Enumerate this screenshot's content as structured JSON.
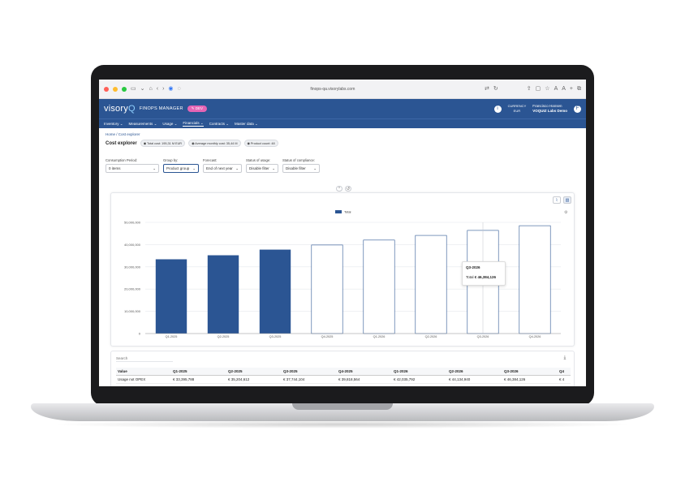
{
  "browser": {
    "url": "finops-qa.visorylabs.com"
  },
  "app": {
    "logo_main": "visory",
    "logo_accent": "Q",
    "name": "FINOPS MANAGER",
    "env_badge": "DEV",
    "currency_label": "CURRENCY",
    "currency_value": "EUR",
    "user_name": "Francisco Hansen",
    "user_org": "VOQUIZ Labs Demo",
    "avatar_initial": "F",
    "help_icon": "info-icon"
  },
  "nav": [
    {
      "label": "Inventory"
    },
    {
      "label": "Measurements"
    },
    {
      "label": "Usage"
    },
    {
      "label": "Financials"
    },
    {
      "label": "Contracts"
    },
    {
      "label": "Master data"
    }
  ],
  "breadcrumb": "Home / Cost explorer",
  "page": {
    "title": "Cost explorer",
    "badges": [
      "Total cost: 195,31 M EUR",
      "Average monthly cost: 35,44 M",
      "Product count: 48"
    ]
  },
  "filters": [
    {
      "label": "Consumption Period:",
      "value": "0 items"
    },
    {
      "label": "Group by:",
      "value": "Product group"
    },
    {
      "label": "Forecast:",
      "value": "End of next year"
    },
    {
      "label": "Status of usage:",
      "value": "Disable filter"
    },
    {
      "label": "Status of compliance:",
      "value": "Disable filter"
    }
  ],
  "chart_data": {
    "type": "bar",
    "categories": [
      "Q1-2025",
      "Q2-2025",
      "Q3-2025",
      "Q4-2025",
      "Q1-2026",
      "Q2-2026",
      "Q3-2026",
      "Q4-2026"
    ],
    "series": [
      {
        "name": "Total",
        "values": [
          33395788,
          35204612,
          37744104,
          39818564,
          42035792,
          44134940,
          46384126,
          48500000
        ]
      }
    ],
    "forecast_from_index": 3,
    "y_ticks": [
      "0",
      "10,000,000",
      "20,000,000",
      "30,000,000",
      "40,000,000",
      "50,000,000"
    ],
    "ylim": [
      0,
      50000000
    ],
    "grid": true,
    "legend": "top-center",
    "color": "#2b5593",
    "tooltip": {
      "category": "Q3-2026",
      "label": "Total",
      "value": "€ 46,384,126"
    }
  },
  "table": {
    "search_placeholder": "Search",
    "headers": [
      "Value",
      "Q1-2025",
      "Q2-2025",
      "Q3-2025",
      "Q4-2025",
      "Q1-2026",
      "Q2-2026",
      "Q3-2026",
      "Q4"
    ],
    "rows": [
      [
        "Usage not OPEX",
        "€ 33,395,788",
        "€ 35,204,612",
        "€ 37,744,104",
        "€ 39,818,564",
        "€ 42,035,792",
        "€ 44,134,940",
        "€ 46,384,126",
        "€ 4"
      ]
    ]
  }
}
